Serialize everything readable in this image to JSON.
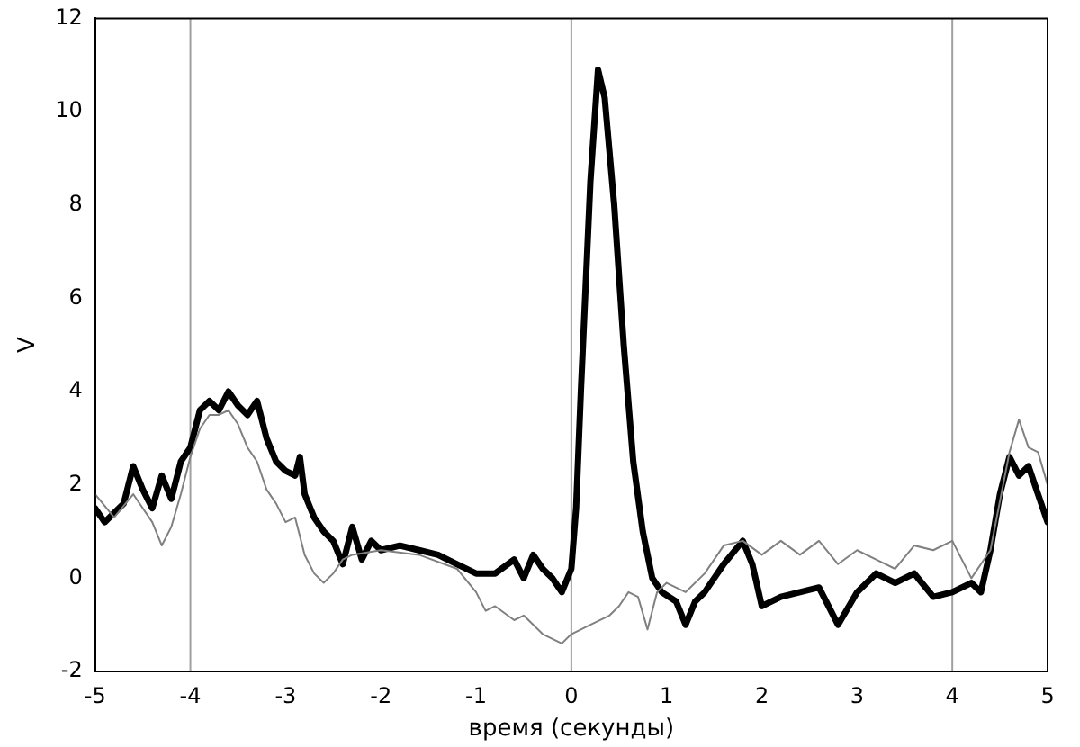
{
  "chart_data": {
    "type": "line",
    "xlabel": "время (секунды)",
    "ylabel": "V",
    "xlim": [
      -5,
      5
    ],
    "xticks": [
      -5,
      -4,
      -3,
      -2,
      -1,
      0,
      1,
      2,
      3,
      4,
      5
    ],
    "ylim": [
      -2,
      12
    ],
    "yticks": [
      -2,
      0,
      2,
      4,
      6,
      8,
      10,
      12
    ],
    "grid": false,
    "legend": false,
    "marker": "none",
    "line_style": "solid",
    "ref_lines": [
      {
        "axis": "x",
        "value": -4,
        "color": "#a0a0a0"
      },
      {
        "axis": "x",
        "value": 0,
        "color": "#a0a0a0"
      },
      {
        "axis": "x",
        "value": 4,
        "color": "#a0a0a0"
      }
    ],
    "series": [
      {
        "color": "#808080",
        "x": [
          -5,
          -4.8,
          -4.6,
          -4.4,
          -4.3,
          -4.2,
          -4.1,
          -4,
          -3.9,
          -3.8,
          -3.7,
          -3.6,
          -3.5,
          -3.4,
          -3.3,
          -3.2,
          -3.1,
          -3,
          -2.9,
          -2.8,
          -2.7,
          -2.6,
          -2.5,
          -2.4,
          -2.3,
          -2,
          -1.6,
          -1.2,
          -1,
          -0.9,
          -0.8,
          -0.6,
          -0.5,
          -0.3,
          -0.1,
          0,
          0.2,
          0.4,
          0.5,
          0.6,
          0.7,
          0.8,
          0.9,
          1,
          1.2,
          1.4,
          1.6,
          1.8,
          2,
          2.2,
          2.4,
          2.6,
          2.8,
          3,
          3.2,
          3.4,
          3.6,
          3.8,
          4,
          4.2,
          4.4,
          4.6,
          4.7,
          4.8,
          4.9,
          5
        ],
        "values": [
          1.8,
          1.3,
          1.8,
          1.2,
          0.7,
          1.1,
          1.8,
          2.6,
          3.2,
          3.5,
          3.5,
          3.6,
          3.3,
          2.8,
          2.5,
          1.9,
          1.6,
          1.2,
          1.3,
          0.5,
          0.1,
          -0.1,
          0.1,
          0.4,
          0.5,
          0.6,
          0.5,
          0.2,
          -0.3,
          -0.7,
          -0.6,
          -0.9,
          -0.8,
          -1.2,
          -1.4,
          -1.2,
          -1,
          -0.8,
          -0.6,
          -0.3,
          -0.4,
          -1.1,
          -0.3,
          -0.1,
          -0.3,
          0.1,
          0.7,
          0.8,
          0.5,
          0.8,
          0.5,
          0.8,
          0.3,
          0.6,
          0.4,
          0.2,
          0.7,
          0.6,
          0.8,
          0,
          0.6,
          2.7,
          3.4,
          2.8,
          2.7,
          2
        ]
      },
      {
        "color": "#000000",
        "x": [
          -5,
          -4.9,
          -4.8,
          -4.7,
          -4.6,
          -4.5,
          -4.4,
          -4.3,
          -4.2,
          -4.1,
          -4,
          -3.9,
          -3.8,
          -3.7,
          -3.6,
          -3.5,
          -3.4,
          -3.3,
          -3.2,
          -3.1,
          -3,
          -2.9,
          -2.85,
          -2.8,
          -2.7,
          -2.6,
          -2.5,
          -2.4,
          -2.3,
          -2.2,
          -2.1,
          -2,
          -1.8,
          -1.6,
          -1.4,
          -1.2,
          -1,
          -0.8,
          -0.6,
          -0.5,
          -0.4,
          -0.3,
          -0.2,
          -0.1,
          0,
          0.05,
          0.1,
          0.2,
          0.28,
          0.35,
          0.45,
          0.55,
          0.65,
          0.75,
          0.85,
          0.95,
          1.1,
          1.2,
          1.3,
          1.4,
          1.6,
          1.8,
          1.9,
          2,
          2.2,
          2.4,
          2.6,
          2.8,
          3,
          3.2,
          3.4,
          3.6,
          3.8,
          4,
          4.2,
          4.3,
          4.4,
          4.5,
          4.6,
          4.7,
          4.8,
          4.9,
          5
        ],
        "values": [
          1.5,
          1.2,
          1.4,
          1.6,
          2.4,
          1.9,
          1.5,
          2.2,
          1.7,
          2.5,
          2.8,
          3.6,
          3.8,
          3.6,
          4,
          3.7,
          3.5,
          3.8,
          3,
          2.5,
          2.3,
          2.2,
          2.6,
          1.8,
          1.3,
          1,
          0.8,
          0.3,
          1.1,
          0.4,
          0.8,
          0.6,
          0.7,
          0.6,
          0.5,
          0.3,
          0.1,
          0.1,
          0.4,
          0,
          0.5,
          0.2,
          0,
          -0.3,
          0.2,
          1.5,
          4,
          8.5,
          10.9,
          10.3,
          8,
          5,
          2.5,
          1,
          0,
          -0.3,
          -0.5,
          -1,
          -0.5,
          -0.3,
          0.3,
          0.8,
          0.3,
          -0.6,
          -0.4,
          -0.3,
          -0.2,
          -1,
          -0.3,
          0.1,
          -0.1,
          0.1,
          -0.4,
          -0.3,
          -0.1,
          -0.3,
          0.6,
          1.8,
          2.6,
          2.2,
          2.4,
          1.8,
          1.2
        ]
      }
    ]
  }
}
